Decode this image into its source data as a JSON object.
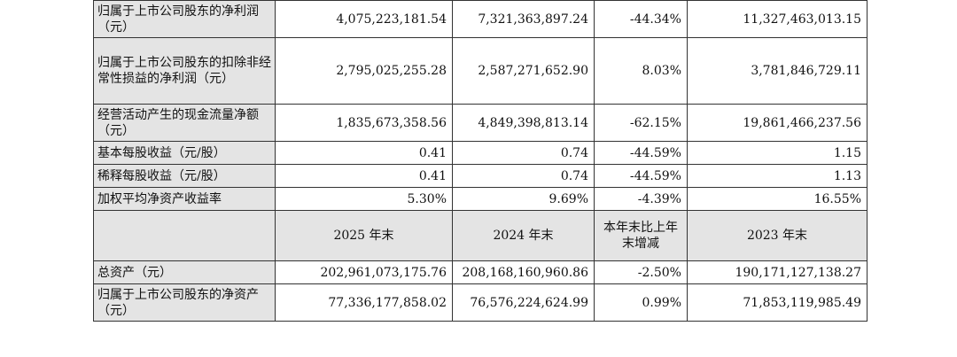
{
  "rows_top": [
    {
      "label": "归属于上市公司股东的净利润（元）",
      "c1": "4,075,223,181.54",
      "c2": "7,321,363,897.24",
      "c3": "-44.34%",
      "c4": "11,327,463,013.15"
    },
    {
      "label": "归属于上市公司股东的扣除非经常性损益的净利润（元）",
      "c1": "2,795,025,255.28",
      "c2": "2,587,271,652.90",
      "c3": "8.03%",
      "c4": "3,781,846,729.11"
    },
    {
      "label": "经营活动产生的现金流量净额（元）",
      "c1": "1,835,673,358.56",
      "c2": "4,849,398,813.14",
      "c3": "-62.15%",
      "c4": "19,861,466,237.56"
    },
    {
      "label": "基本每股收益（元/股）",
      "c1": "0.41",
      "c2": "0.74",
      "c3": "-44.59%",
      "c4": "1.15"
    },
    {
      "label": "稀释每股收益（元/股）",
      "c1": "0.41",
      "c2": "0.74",
      "c3": "-44.59%",
      "c4": "1.13"
    },
    {
      "label": "加权平均净资产收益率",
      "c1": "5.30%",
      "c2": "9.69%",
      "c3": "-4.39%",
      "c4": "16.55%"
    }
  ],
  "header2": {
    "c1": "2025 年末",
    "c2": "2024 年末",
    "c3": "本年末比上年末增减",
    "c4": "2023 年末"
  },
  "rows_bottom": [
    {
      "label": "总资产（元）",
      "c1": "202,961,073,175.76",
      "c2": "208,168,160,960.86",
      "c3": "-2.50%",
      "c4": "190,171,127,138.27"
    },
    {
      "label": "归属于上市公司股东的净资产（元）",
      "c1": "77,336,177,858.02",
      "c2": "76,576,224,624.99",
      "c3": "0.99%",
      "c4": "71,853,119,985.49"
    }
  ]
}
